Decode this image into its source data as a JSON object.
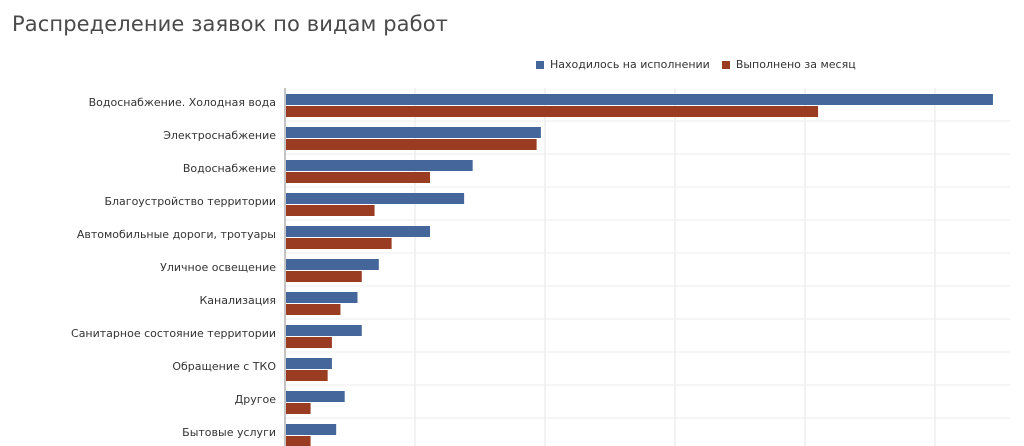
{
  "page": {
    "title": "Распределение заявок по видам работ"
  },
  "legend": [
    {
      "label": "Находилось на исполнении",
      "color": "#44669a"
    },
    {
      "label": "Выполнено за месяц",
      "color": "#9a3c22"
    }
  ],
  "chart_data": {
    "type": "bar",
    "orientation": "horizontal",
    "title": "Распределение заявок по видам работ",
    "legend_position": "top-right",
    "grid": true,
    "categories": [
      "Водоснабжение. Холодная вода",
      "Электроснабжение",
      "Водоснабжение",
      "Благоустройство территории",
      "Автомобильные дороги, тротуары",
      "Уличное освещение",
      "Канализация",
      "Санитарное состояние территории",
      "Обращение с ТКО",
      "Другое",
      "Бытовые услуги"
    ],
    "series": [
      {
        "name": "Находилось на исполнении",
        "color": "#44669a",
        "values": [
          166,
          60,
          44,
          42,
          34,
          22,
          17,
          18,
          11,
          14,
          12
        ]
      },
      {
        "name": "Выполнено за месяц",
        "color": "#9a3c22",
        "values": [
          125,
          59,
          34,
          21,
          25,
          18,
          13,
          11,
          10,
          6,
          6
        ]
      }
    ],
    "xlim": [
      0,
      170
    ]
  }
}
